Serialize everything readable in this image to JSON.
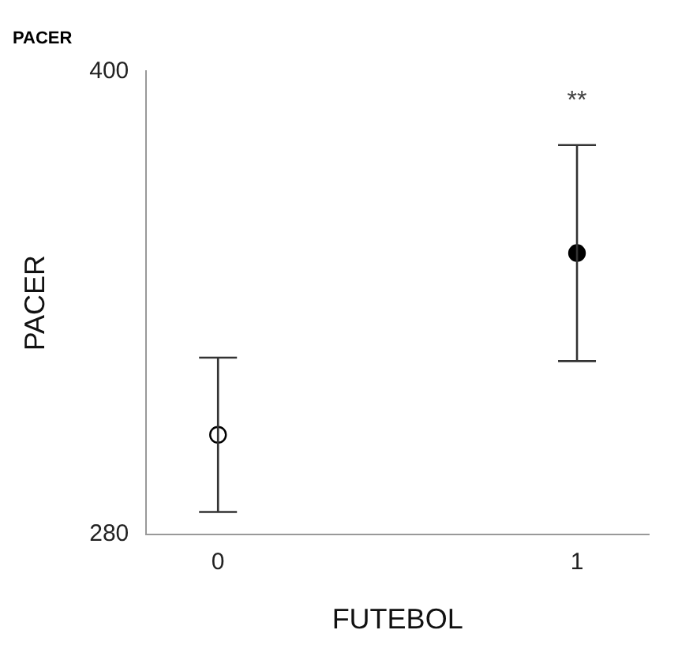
{
  "chart_data": {
    "type": "scatter",
    "title": "PACER",
    "xlabel": "FUTEBOL",
    "ylabel": "PACER",
    "x": [
      0,
      1
    ],
    "xlim": [
      -0.2,
      1.2
    ],
    "xticks": [
      0,
      1
    ],
    "ylim": [
      280,
      400
    ],
    "yticks": [
      280,
      400
    ],
    "values": [
      305.8,
      352.9
    ],
    "errors": [
      20,
      28
    ],
    "colors": [
      "#ffffff",
      "#000000"
    ],
    "marker": "circle",
    "grid": false,
    "legend": false,
    "annotations": [
      "**"
    ]
  }
}
